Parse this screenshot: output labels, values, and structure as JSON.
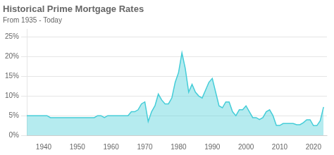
{
  "chart_data": {
    "type": "area",
    "title": "Historical Prime Mortgage Rates",
    "subtitle": "From 1935 - Today",
    "x": [
      1935,
      1936,
      1937,
      1938,
      1939,
      1940,
      1941,
      1942,
      1943,
      1944,
      1945,
      1946,
      1947,
      1948,
      1949,
      1950,
      1951,
      1952,
      1953,
      1954,
      1955,
      1956,
      1957,
      1958,
      1959,
      1960,
      1961,
      1962,
      1963,
      1964,
      1965,
      1966,
      1967,
      1968,
      1969,
      1970,
      1971,
      1972,
      1973,
      1974,
      1975,
      1976,
      1977,
      1978,
      1979,
      1980,
      1981,
      1982,
      1983,
      1984,
      1985,
      1986,
      1987,
      1988,
      1989,
      1990,
      1991,
      1992,
      1993,
      1994,
      1995,
      1996,
      1997,
      1998,
      1999,
      2000,
      2001,
      2002,
      2003,
      2004,
      2005,
      2006,
      2007,
      2008,
      2009,
      2010,
      2011,
      2012,
      2013,
      2014,
      2015,
      2016,
      2017,
      2018,
      2019,
      2020,
      2021,
      2022,
      2023
    ],
    "values": [
      5.0,
      5.0,
      5.0,
      5.0,
      5.0,
      5.0,
      5.0,
      4.5,
      4.5,
      4.5,
      4.5,
      4.5,
      4.5,
      4.5,
      4.5,
      4.5,
      4.5,
      4.5,
      4.5,
      4.5,
      4.5,
      5.0,
      5.0,
      4.5,
      5.0,
      5.0,
      5.0,
      5.0,
      5.0,
      5.0,
      5.0,
      6.0,
      6.0,
      6.5,
      8.0,
      8.5,
      3.5,
      6.0,
      7.5,
      10.5,
      9.0,
      8.0,
      8.0,
      9.5,
      13.5,
      16.0,
      21.0,
      17.0,
      11.0,
      13.0,
      11.0,
      10.0,
      9.5,
      11.5,
      13.5,
      14.5,
      11.0,
      7.5,
      7.0,
      8.5,
      8.5,
      6.0,
      5.0,
      6.5,
      6.5,
      7.5,
      6.0,
      4.5,
      4.5,
      4.0,
      4.5,
      6.0,
      6.5,
      5.0,
      2.5,
      2.5,
      3.0,
      3.0,
      3.0,
      3.0,
      2.7,
      2.7,
      3.2,
      3.95,
      3.95,
      2.45,
      2.45,
      3.7,
      7.2
    ],
    "color": "#45CDD8",
    "xlim": [
      1935,
      2024
    ],
    "xticks": [
      1940,
      1950,
      1960,
      1970,
      1980,
      1990,
      2000,
      2010,
      2020
    ],
    "ylim": [
      0,
      27
    ],
    "yticks": [
      {
        "value": 0,
        "label": "0%"
      },
      {
        "value": 5,
        "label": "5%"
      },
      {
        "value": 10,
        "label": "10%"
      },
      {
        "value": 15,
        "label": "15%"
      },
      {
        "value": 20,
        "label": "20%"
      },
      {
        "value": 25,
        "label": "25%"
      }
    ],
    "grid": true
  }
}
